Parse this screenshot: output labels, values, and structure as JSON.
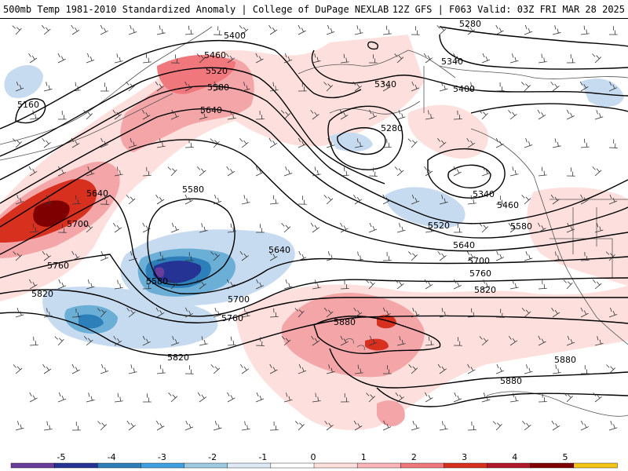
{
  "header": {
    "title_left": "500mb Temp 1981-2010 Standardized Anomaly | College of DuPage NEXLAB",
    "title_right": "12Z GFS | F063 Valid: 03Z FRI MAR 28 2025"
  },
  "contour_labels": [
    {
      "id": "c5160",
      "text": "5160"
    },
    {
      "id": "c5400a",
      "text": "5400"
    },
    {
      "id": "c5460a",
      "text": "5460"
    },
    {
      "id": "c5520a",
      "text": "5520"
    },
    {
      "id": "c5580a",
      "text": "5580"
    },
    {
      "id": "c5640a",
      "text": "5640"
    },
    {
      "id": "c5640b",
      "text": "5640"
    },
    {
      "id": "c5700a",
      "text": "5700"
    },
    {
      "id": "c5580b",
      "text": "5580"
    },
    {
      "id": "c5640c",
      "text": "5640"
    },
    {
      "id": "c5580c",
      "text": "5580"
    },
    {
      "id": "c5760a",
      "text": "5760"
    },
    {
      "id": "c5700b",
      "text": "5700"
    },
    {
      "id": "c5760b",
      "text": "5760"
    },
    {
      "id": "c5820a",
      "text": "5820"
    },
    {
      "id": "c5820b",
      "text": "5820"
    },
    {
      "id": "c5880a",
      "text": "5880"
    },
    {
      "id": "c5280a",
      "text": "5280"
    },
    {
      "id": "c5340a",
      "text": "5340"
    },
    {
      "id": "c5340b",
      "text": "5340"
    },
    {
      "id": "c5280b",
      "text": "5280"
    },
    {
      "id": "c5400b",
      "text": "5400"
    },
    {
      "id": "c5340c",
      "text": "5340"
    },
    {
      "id": "c5460b",
      "text": "5460"
    },
    {
      "id": "c5520b",
      "text": "5520"
    },
    {
      "id": "c5580d",
      "text": "5580"
    },
    {
      "id": "c5640d",
      "text": "5640"
    },
    {
      "id": "c5700c",
      "text": "5700"
    },
    {
      "id": "c5760c",
      "text": "5760"
    },
    {
      "id": "c5820c",
      "text": "5820"
    },
    {
      "id": "c5880b",
      "text": "5880"
    },
    {
      "id": "c5880c",
      "text": "5880"
    }
  ],
  "colorbar": {
    "ticks": [
      "-5",
      "-4",
      "-3",
      "-2",
      "-1",
      "0",
      "1",
      "2",
      "3",
      "4",
      "5"
    ],
    "colors": [
      "#6a3d9a",
      "#253494",
      "#2c7fb8",
      "#41a0e0",
      "#9ecae1",
      "#deebf7",
      "#ffffff",
      "#fde0dd",
      "#fbb4b9",
      "#f0787d",
      "#d7301f",
      "#b2182b",
      "#7f0000",
      "#f5c518"
    ]
  }
}
